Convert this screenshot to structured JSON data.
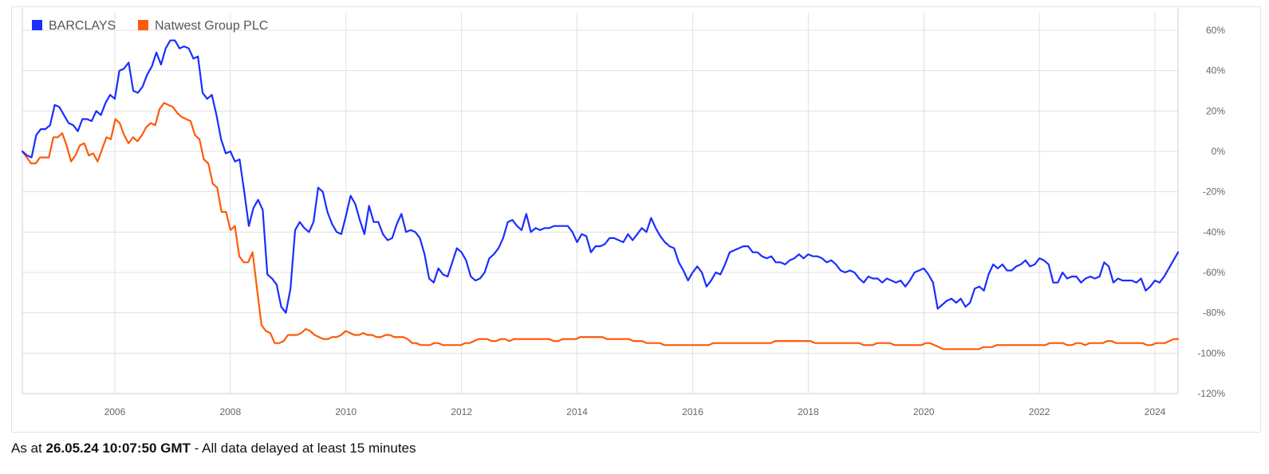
{
  "chart_data": {
    "type": "line",
    "x_start": 2004.4,
    "x_end": 2024.4,
    "ylim": [
      -120,
      60
    ],
    "y_ticks": [
      60,
      40,
      20,
      0,
      -20,
      -40,
      -60,
      -80,
      -100,
      -120
    ],
    "y_tick_labels": [
      "60%",
      "40%",
      "20%",
      "0%",
      "-20%",
      "-40%",
      "-60%",
      "-80%",
      "-100%",
      "-120%"
    ],
    "x_ticks": [
      2006,
      2008,
      2010,
      2012,
      2014,
      2016,
      2018,
      2020,
      2022,
      2024
    ],
    "x_tick_labels": [
      "2006",
      "2008",
      "2010",
      "2012",
      "2014",
      "2016",
      "2018",
      "2020",
      "2022",
      "2024"
    ],
    "grid": true,
    "legend_position": "top-left",
    "series": [
      {
        "name": "BARCLAYS",
        "color": "#1a2eff",
        "values": [
          0,
          -2,
          -3,
          8,
          11,
          11,
          13,
          23,
          22,
          18,
          14,
          13,
          10,
          16,
          16,
          15,
          20,
          18,
          24,
          28,
          26,
          40,
          41,
          44,
          30,
          29,
          32,
          38,
          42,
          49,
          43,
          51,
          55,
          55,
          51,
          52,
          51,
          46,
          47,
          29,
          26,
          28,
          18,
          6,
          -1,
          0,
          -5,
          -4,
          -20,
          -37,
          -28,
          -24,
          -29,
          -61,
          -63,
          -66,
          -77,
          -80,
          -68,
          -39,
          -35,
          -38,
          -40,
          -35,
          -18,
          -20,
          -30,
          -36,
          -40,
          -41,
          -32,
          -22,
          -26,
          -34,
          -41,
          -27,
          -35,
          -35,
          -41,
          -44,
          -43,
          -36,
          -31,
          -40,
          -39,
          -40,
          -43,
          -51,
          -63,
          -65,
          -58,
          -61,
          -62,
          -55,
          -48,
          -50,
          -54,
          -62,
          -64,
          -63,
          -60,
          -53,
          -51,
          -48,
          -43,
          -35,
          -34,
          -37,
          -39,
          -31,
          -40,
          -38,
          -39,
          -38,
          -38,
          -37,
          -37,
          -37,
          -37,
          -40,
          -45,
          -41,
          -42,
          -50,
          -47,
          -47,
          -46,
          -43,
          -43,
          -44,
          -45,
          -41,
          -44,
          -41,
          -38,
          -40,
          -33,
          -38,
          -42,
          -45,
          -47,
          -48,
          -55,
          -59,
          -64,
          -60,
          -57,
          -60,
          -67,
          -64,
          -60,
          -61,
          -56,
          -50,
          -49,
          -48,
          -47,
          -47,
          -50,
          -50,
          -52,
          -53,
          -52,
          -55,
          -55,
          -56,
          -54,
          -53,
          -51,
          -53,
          -51,
          -52,
          -52,
          -53,
          -55,
          -54,
          -56,
          -59,
          -60,
          -59,
          -60,
          -63,
          -65,
          -62,
          -63,
          -63,
          -65,
          -63,
          -64,
          -65,
          -64,
          -67,
          -64,
          -60,
          -59,
          -58,
          -61,
          -65,
          -78,
          -76,
          -74,
          -73,
          -75,
          -73,
          -77,
          -75,
          -68,
          -67,
          -69,
          -61,
          -56,
          -58,
          -56,
          -59,
          -59,
          -57,
          -56,
          -54,
          -57,
          -56,
          -53,
          -54,
          -56,
          -65,
          -65,
          -60,
          -63,
          -62,
          -62,
          -65,
          -63,
          -62,
          -63,
          -62,
          -55,
          -57,
          -65,
          -63,
          -64,
          -64,
          -64,
          -65,
          -63,
          -69,
          -67,
          -64,
          -65,
          -62,
          -58,
          -54,
          -50
        ],
        "min_value": -80,
        "max_value": 55
      },
      {
        "name": "Natwest Group PLC",
        "color": "#ff5a0a",
        "values": [
          0,
          -3,
          -6,
          -6,
          -3,
          -3,
          -3,
          7,
          7,
          9,
          3,
          -5,
          -2,
          3,
          4,
          -2,
          -1,
          -5,
          1,
          7,
          6,
          16,
          14,
          8,
          4,
          7,
          5,
          8,
          12,
          14,
          13,
          21,
          24,
          23,
          22,
          19,
          17,
          16,
          15,
          8,
          6,
          -4,
          -6,
          -16,
          -18,
          -30,
          -30,
          -39,
          -37,
          -52,
          -55,
          -55,
          -50,
          -68,
          -86,
          -89,
          -90,
          -95,
          -95,
          -94,
          -91,
          -91,
          -91,
          -90,
          -88,
          -89,
          -91,
          -92,
          -93,
          -93,
          -92,
          -92,
          -91,
          -89,
          -90,
          -91,
          -91,
          -90,
          -91,
          -91,
          -92,
          -92,
          -91,
          -91,
          -92,
          -92,
          -92,
          -93,
          -95,
          -95,
          -96,
          -96,
          -96,
          -95,
          -95,
          -96,
          -96,
          -96,
          -96,
          -96,
          -95,
          -95,
          -94,
          -93,
          -93,
          -93,
          -94,
          -94,
          -93,
          -93,
          -94,
          -93,
          -93,
          -93,
          -93,
          -93,
          -93,
          -93,
          -93,
          -93,
          -94,
          -94,
          -93,
          -93,
          -93,
          -93,
          -92,
          -92,
          -92,
          -92,
          -92,
          -92,
          -93,
          -93,
          -93,
          -93,
          -93,
          -93,
          -94,
          -94,
          -94,
          -95,
          -95,
          -95,
          -95,
          -96,
          -96,
          -96,
          -96,
          -96,
          -96,
          -96,
          -96,
          -96,
          -96,
          -96,
          -95,
          -95,
          -95,
          -95,
          -95,
          -95,
          -95,
          -95,
          -95,
          -95,
          -95,
          -95,
          -95,
          -95,
          -94,
          -94,
          -94,
          -94,
          -94,
          -94,
          -94,
          -94,
          -94,
          -95,
          -95,
          -95,
          -95,
          -95,
          -95,
          -95,
          -95,
          -95,
          -95,
          -95,
          -96,
          -96,
          -96,
          -95,
          -95,
          -95,
          -95,
          -96,
          -96,
          -96,
          -96,
          -96,
          -96,
          -96,
          -95,
          -95,
          -96,
          -97,
          -98,
          -98,
          -98,
          -98,
          -98,
          -98,
          -98,
          -98,
          -98,
          -97,
          -97,
          -97,
          -96,
          -96,
          -96,
          -96,
          -96,
          -96,
          -96,
          -96,
          -96,
          -96,
          -96,
          -96,
          -95,
          -95,
          -95,
          -95,
          -96,
          -96,
          -95,
          -95,
          -96,
          -95,
          -95,
          -95,
          -95,
          -94,
          -94,
          -95,
          -95,
          -95,
          -95,
          -95,
          -95,
          -95,
          -96,
          -96,
          -95,
          -95,
          -95,
          -94,
          -93,
          -93
        ],
        "min_value": -98,
        "max_value": 24
      }
    ]
  },
  "footer": {
    "prefix": "As at",
    "timestamp": "26.05.24 10:07:50 GMT",
    "suffix": "- All data delayed at least 15 minutes"
  }
}
